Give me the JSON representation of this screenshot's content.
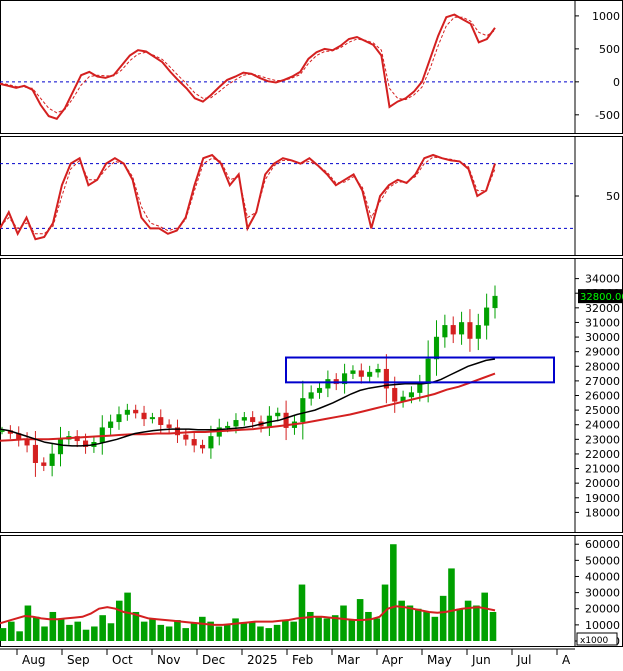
{
  "chart_data": [
    {
      "type": "line",
      "panel": "macd",
      "yticks": [
        1000,
        500,
        0,
        -500
      ],
      "ylim": [
        -700,
        1150
      ],
      "reference_lines": [
        0
      ],
      "colors": {
        "main": "#d42020",
        "signal": "#d42020",
        "reference": "#0000cc"
      },
      "series": [
        {
          "values": [
            -30,
            -60,
            -90,
            -60,
            -120,
            -350,
            -520,
            -560,
            -400,
            -150,
            100,
            150,
            80,
            60,
            100,
            250,
            400,
            480,
            460,
            380,
            300,
            150,
            20,
            -100,
            -250,
            -300,
            -200,
            -80,
            30,
            80,
            140,
            120,
            60,
            10,
            -10,
            30,
            80,
            150,
            350,
            450,
            500,
            480,
            550,
            650,
            680,
            620,
            560,
            400,
            -380,
            -300,
            -250,
            -150,
            0,
            350,
            700,
            980,
            1020,
            950,
            880,
            600,
            650,
            820
          ]
        },
        {
          "values": [
            -20,
            -40,
            -70,
            -80,
            -100,
            -250,
            -400,
            -470,
            -420,
            -250,
            -50,
            80,
            100,
            90,
            90,
            180,
            320,
            420,
            450,
            400,
            340,
            220,
            90,
            -30,
            -170,
            -250,
            -240,
            -150,
            -50,
            30,
            100,
            120,
            90,
            50,
            20,
            20,
            60,
            110,
            280,
            400,
            460,
            470,
            520,
            600,
            650,
            630,
            590,
            480,
            -100,
            -250,
            -270,
            -200,
            -80,
            200,
            550,
            850,
            980,
            980,
            920,
            750,
            700,
            780
          ]
        }
      ]
    },
    {
      "type": "line",
      "panel": "stochastic",
      "yticks": [
        50
      ],
      "ylim": [
        0,
        100
      ],
      "reference_lines": [
        80,
        20
      ],
      "colors": {
        "main": "#d42020",
        "signal": "#d42020",
        "reference": "#0000cc"
      },
      "series": [
        {
          "values": [
            20,
            35,
            15,
            30,
            10,
            12,
            25,
            60,
            80,
            85,
            60,
            65,
            80,
            85,
            80,
            65,
            30,
            20,
            20,
            15,
            18,
            30,
            60,
            85,
            88,
            80,
            60,
            70,
            20,
            35,
            70,
            80,
            85,
            83,
            80,
            85,
            78,
            70,
            60,
            65,
            70,
            55,
            20,
            50,
            60,
            65,
            62,
            70,
            85,
            88,
            85,
            83,
            82,
            75,
            50,
            55,
            80
          ]
        },
        {
          "values": [
            22,
            30,
            20,
            25,
            15,
            15,
            22,
            50,
            75,
            83,
            65,
            65,
            75,
            82,
            80,
            68,
            40,
            25,
            22,
            18,
            20,
            28,
            55,
            80,
            85,
            82,
            65,
            68,
            30,
            35,
            65,
            78,
            83,
            83,
            80,
            82,
            78,
            72,
            62,
            63,
            68,
            58,
            30,
            45,
            58,
            63,
            63,
            68,
            80,
            86,
            85,
            84,
            82,
            77,
            55,
            55,
            75
          ]
        }
      ]
    },
    {
      "type": "candlestick",
      "panel": "price",
      "ylim": [
        17000,
        35000
      ],
      "yticks": [
        34000,
        33000,
        32000,
        31000,
        30000,
        29000,
        28000,
        27000,
        26000,
        25000,
        24000,
        23000,
        22000,
        21000,
        20000,
        19000,
        18000
      ],
      "last_value_label": "32800.00",
      "highlight_box": {
        "y_low": 26900,
        "y_high": 28600
      },
      "colors": {
        "up": "#00a000",
        "down": "#d42020",
        "ma_short": "#000000",
        "ma_long": "#d42020",
        "box": "#0000cc",
        "label_bg": "#000000",
        "label_text": "#00ff00"
      },
      "closes": [
        23600,
        23400,
        23000,
        22600,
        21400,
        21200,
        22000,
        23000,
        23200,
        22900,
        22500,
        22800,
        23800,
        24200,
        24700,
        25000,
        24800,
        24400,
        24500,
        24000,
        23800,
        23300,
        23000,
        22600,
        22400,
        23200,
        23800,
        23900,
        24300,
        24500,
        24200,
        23900,
        24600,
        24800,
        23800,
        24200,
        25800,
        26200,
        26500,
        27100,
        26800,
        27500,
        27700,
        27300,
        27600,
        27800,
        26500,
        25600,
        25900,
        26200,
        26800,
        28500,
        30000,
        30800,
        30200,
        31000,
        29900,
        30800,
        32000,
        32800
      ],
      "ma_short": [
        23700,
        23600,
        23400,
        23200,
        23000,
        22800,
        22700,
        22600,
        22550,
        22550,
        22600,
        22700,
        22850,
        23000,
        23200,
        23400,
        23500,
        23600,
        23650,
        23700,
        23700,
        23700,
        23650,
        23650,
        23650,
        23700,
        23750,
        23800,
        23900,
        24050,
        24200,
        24300,
        24500,
        24700,
        24850,
        25000,
        25250,
        25500,
        25800,
        26100,
        26350,
        26500,
        26600,
        26700,
        26750,
        26800,
        26800,
        26800,
        26900,
        27100,
        27400,
        27700,
        28000,
        28200,
        28400,
        28500
      ],
      "ma_long": [
        22900,
        22950,
        23000,
        23000,
        23000,
        23050,
        23100,
        23150,
        23200,
        23250,
        23300,
        23350,
        23350,
        23400,
        23400,
        23450,
        23500,
        23500,
        23550,
        23600,
        23650,
        23700,
        23800,
        23900,
        24000,
        24100,
        24250,
        24400,
        24550,
        24700,
        24900,
        25100,
        25300,
        25500,
        25700,
        25900,
        26100,
        26400,
        26600,
        26900,
        27200,
        27500
      ]
    },
    {
      "type": "bar",
      "panel": "volume",
      "ylim": [
        0,
        62000
      ],
      "yticks": [
        60000,
        50000,
        40000,
        30000,
        20000,
        10000,
        0
      ],
      "unit_label": "x1000",
      "colors": {
        "bars": "#00a000",
        "ma": "#d42020"
      },
      "values": [
        8000,
        12000,
        6000,
        22000,
        15000,
        9000,
        18000,
        14000,
        10000,
        12000,
        7000,
        9000,
        16000,
        11000,
        25000,
        30000,
        18000,
        12000,
        14000,
        10000,
        9000,
        13000,
        8000,
        11000,
        15000,
        12000,
        9000,
        10000,
        14000,
        11000,
        12000,
        9000,
        8000,
        10000,
        13000,
        12000,
        35000,
        18000,
        15000,
        14000,
        16000,
        22000,
        13000,
        26000,
        18000,
        14000,
        35000,
        60000,
        25000,
        22000,
        20000,
        18000,
        15000,
        28000,
        45000,
        20000,
        25000,
        22000,
        30000,
        18000
      ],
      "ma": [
        11000,
        12500,
        14000,
        15500,
        15000,
        14000,
        13500,
        13500,
        14000,
        14500,
        15000,
        17000,
        20000,
        21000,
        20000,
        18000,
        17000,
        15500,
        14000,
        13500,
        13000,
        12500,
        12000,
        11500,
        11000,
        10500,
        10000,
        10000,
        10500,
        11000,
        11500,
        12000,
        12000,
        12000,
        12500,
        13000,
        14000,
        14500,
        15000,
        15000,
        14500,
        14000,
        13500,
        13000,
        13000,
        13500,
        15000,
        20000,
        21500,
        21000,
        20000,
        19000,
        18000,
        17500,
        18000,
        19000,
        20000,
        20500,
        21000,
        20000,
        19000
      ]
    }
  ],
  "x_axis": {
    "labels": [
      "Aug",
      "Sep",
      "Oct",
      "Nov",
      "Dec",
      "2025",
      "Feb",
      "Mar",
      "Apr",
      "May",
      "Jun",
      "Jul",
      "A"
    ]
  }
}
